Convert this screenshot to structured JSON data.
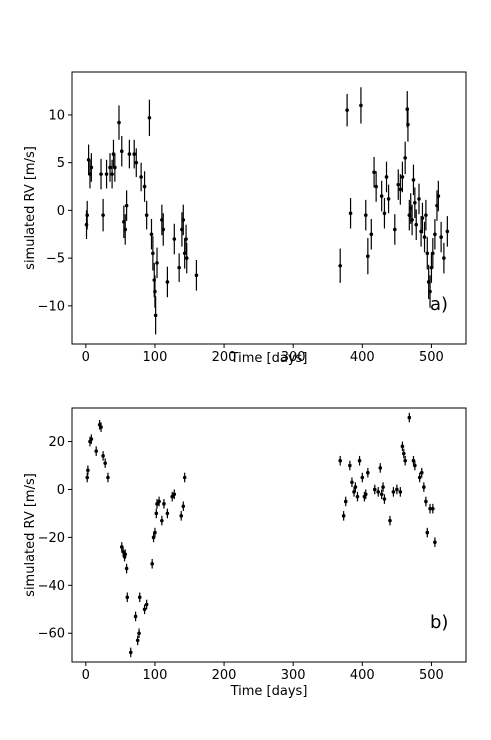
{
  "chart_data": [
    {
      "type": "scatter",
      "xlabel": "Time [days]",
      "ylabel": "simulated RV  [m/s]",
      "panel_label": "a)",
      "panel_label_color": "#0000cc",
      "marker_color": "#000000",
      "xlim": [
        -20,
        550
      ],
      "ylim": [
        -14,
        14.5
      ],
      "xticks": [
        0,
        100,
        200,
        300,
        400,
        500
      ],
      "yticks": [
        -10,
        -5,
        0,
        5,
        10
      ],
      "grid": false,
      "points": [
        {
          "x": 1,
          "y": -1.5,
          "err": 1.5
        },
        {
          "x": 2,
          "y": -0.5,
          "err": 1.5
        },
        {
          "x": 4,
          "y": 5.3,
          "err": 1.6
        },
        {
          "x": 6,
          "y": 3.8,
          "err": 1.5
        },
        {
          "x": 8,
          "y": 4.5,
          "err": 1.5
        },
        {
          "x": 22,
          "y": 3.8,
          "err": 1.6
        },
        {
          "x": 25,
          "y": -0.5,
          "err": 1.7
        },
        {
          "x": 30,
          "y": 3.8,
          "err": 1.5
        },
        {
          "x": 35,
          "y": 4.5,
          "err": 1.5
        },
        {
          "x": 38,
          "y": 3.8,
          "err": 1.5
        },
        {
          "x": 40,
          "y": 5.9,
          "err": 1.5
        },
        {
          "x": 42,
          "y": 4.5,
          "err": 1.5
        },
        {
          "x": 48,
          "y": 9.2,
          "err": 1.8
        },
        {
          "x": 52,
          "y": 6.2,
          "err": 1.6
        },
        {
          "x": 55,
          "y": -1.2,
          "err": 1.7
        },
        {
          "x": 57,
          "y": -2.0,
          "err": 1.6
        },
        {
          "x": 59,
          "y": 0.5,
          "err": 1.6
        },
        {
          "x": 63,
          "y": 5.9,
          "err": 1.5
        },
        {
          "x": 70,
          "y": 5.9,
          "err": 1.5
        },
        {
          "x": 73,
          "y": 5.0,
          "err": 1.5
        },
        {
          "x": 80,
          "y": 3.5,
          "err": 1.5
        },
        {
          "x": 85,
          "y": 2.5,
          "err": 1.6
        },
        {
          "x": 88,
          "y": -0.5,
          "err": 1.5
        },
        {
          "x": 92,
          "y": 9.7,
          "err": 1.9
        },
        {
          "x": 95,
          "y": -2.5,
          "err": 1.6
        },
        {
          "x": 97,
          "y": -4.5,
          "err": 1.8
        },
        {
          "x": 99,
          "y": -7.3,
          "err": 1.8
        },
        {
          "x": 100,
          "y": -8.5,
          "err": 1.7
        },
        {
          "x": 101,
          "y": -11.0,
          "err": 2.0
        },
        {
          "x": 103,
          "y": -5.5,
          "err": 1.6
        },
        {
          "x": 110,
          "y": -1.0,
          "err": 1.6
        },
        {
          "x": 112,
          "y": -2.0,
          "err": 1.7
        },
        {
          "x": 118,
          "y": -7.5,
          "err": 1.6
        },
        {
          "x": 128,
          "y": -3.0,
          "err": 1.6
        },
        {
          "x": 135,
          "y": -6.0,
          "err": 1.5
        },
        {
          "x": 139,
          "y": -2.0,
          "err": 1.8
        },
        {
          "x": 141,
          "y": -1.0,
          "err": 1.6
        },
        {
          "x": 143,
          "y": -4.5,
          "err": 1.6
        },
        {
          "x": 145,
          "y": -3.0,
          "err": 1.5
        },
        {
          "x": 146,
          "y": -5.0,
          "err": 1.6
        },
        {
          "x": 160,
          "y": -6.8,
          "err": 1.6
        },
        {
          "x": 368,
          "y": -5.8,
          "err": 1.8
        },
        {
          "x": 378,
          "y": 10.5,
          "err": 1.7
        },
        {
          "x": 383,
          "y": -0.3,
          "err": 1.6
        },
        {
          "x": 398,
          "y": 11.0,
          "err": 1.9
        },
        {
          "x": 405,
          "y": -0.5,
          "err": 1.6
        },
        {
          "x": 408,
          "y": -4.8,
          "err": 1.9
        },
        {
          "x": 413,
          "y": -2.5,
          "err": 1.6
        },
        {
          "x": 417,
          "y": 4.0,
          "err": 1.6
        },
        {
          "x": 420,
          "y": 2.5,
          "err": 1.6
        },
        {
          "x": 428,
          "y": 1.5,
          "err": 1.6
        },
        {
          "x": 432,
          "y": -0.3,
          "err": 1.6
        },
        {
          "x": 435,
          "y": 3.5,
          "err": 1.6
        },
        {
          "x": 438,
          "y": 1.2,
          "err": 1.5
        },
        {
          "x": 447,
          "y": -2.0,
          "err": 1.6
        },
        {
          "x": 452,
          "y": 2.7,
          "err": 1.6
        },
        {
          "x": 455,
          "y": 2.2,
          "err": 1.6
        },
        {
          "x": 458,
          "y": 3.5,
          "err": 1.6
        },
        {
          "x": 462,
          "y": 5.5,
          "err": 1.7
        },
        {
          "x": 465,
          "y": 10.6,
          "err": 1.9
        },
        {
          "x": 466,
          "y": 9.0,
          "err": 1.8
        },
        {
          "x": 468,
          "y": -0.5,
          "err": 1.6
        },
        {
          "x": 470,
          "y": 0.2,
          "err": 1.6
        },
        {
          "x": 472,
          "y": -1.0,
          "err": 1.6
        },
        {
          "x": 474,
          "y": 3.2,
          "err": 1.6
        },
        {
          "x": 476,
          "y": 0.8,
          "err": 1.6
        },
        {
          "x": 478,
          "y": -1.5,
          "err": 1.6
        },
        {
          "x": 482,
          "y": 1.2,
          "err": 1.6
        },
        {
          "x": 485,
          "y": -2.2,
          "err": 1.6
        },
        {
          "x": 487,
          "y": -0.8,
          "err": 1.6
        },
        {
          "x": 490,
          "y": -2.8,
          "err": 1.6
        },
        {
          "x": 492,
          "y": -0.5,
          "err": 1.6
        },
        {
          "x": 494,
          "y": -4.5,
          "err": 1.7
        },
        {
          "x": 496,
          "y": -7.5,
          "err": 1.8
        },
        {
          "x": 498,
          "y": -8.5,
          "err": 1.7
        },
        {
          "x": 500,
          "y": -6.0,
          "err": 1.6
        },
        {
          "x": 502,
          "y": -4.5,
          "err": 1.6
        },
        {
          "x": 505,
          "y": -2.5,
          "err": 1.6
        },
        {
          "x": 508,
          "y": 0.5,
          "err": 1.6
        },
        {
          "x": 510,
          "y": 1.5,
          "err": 1.6
        },
        {
          "x": 514,
          "y": -2.8,
          "err": 1.6
        },
        {
          "x": 518,
          "y": -5.0,
          "err": 1.6
        },
        {
          "x": 523,
          "y": -2.2,
          "err": 1.6
        }
      ]
    },
    {
      "type": "scatter",
      "xlabel": "Time [days]",
      "ylabel": "simulated RV  [m/s]",
      "panel_label": "b)",
      "panel_label_color": "#0000cc",
      "marker_color": "#000000",
      "xlim": [
        -20,
        550
      ],
      "ylim": [
        -72,
        34
      ],
      "xticks": [
        0,
        100,
        200,
        300,
        400,
        500
      ],
      "yticks": [
        -60,
        -40,
        -20,
        0,
        20
      ],
      "grid": false,
      "points": [
        {
          "x": 2,
          "y": 5,
          "err": 2
        },
        {
          "x": 3,
          "y": 8,
          "err": 2
        },
        {
          "x": 6,
          "y": 20,
          "err": 2
        },
        {
          "x": 8,
          "y": 21,
          "err": 2
        },
        {
          "x": 15,
          "y": 16,
          "err": 2
        },
        {
          "x": 20,
          "y": 27,
          "err": 2
        },
        {
          "x": 22,
          "y": 26,
          "err": 2
        },
        {
          "x": 25,
          "y": 14,
          "err": 2
        },
        {
          "x": 28,
          "y": 11,
          "err": 2
        },
        {
          "x": 32,
          "y": 5,
          "err": 2
        },
        {
          "x": 52,
          "y": -24,
          "err": 2
        },
        {
          "x": 54,
          "y": -26,
          "err": 2
        },
        {
          "x": 56,
          "y": -28,
          "err": 2
        },
        {
          "x": 57,
          "y": -27,
          "err": 2
        },
        {
          "x": 59,
          "y": -33,
          "err": 2
        },
        {
          "x": 60,
          "y": -45,
          "err": 2
        },
        {
          "x": 65,
          "y": -68,
          "err": 2
        },
        {
          "x": 72,
          "y": -53,
          "err": 2
        },
        {
          "x": 75,
          "y": -63,
          "err": 2
        },
        {
          "x": 77,
          "y": -60,
          "err": 2
        },
        {
          "x": 78,
          "y": -45,
          "err": 2
        },
        {
          "x": 85,
          "y": -50,
          "err": 2
        },
        {
          "x": 88,
          "y": -48,
          "err": 2
        },
        {
          "x": 96,
          "y": -31,
          "err": 2
        },
        {
          "x": 98,
          "y": -20,
          "err": 2
        },
        {
          "x": 100,
          "y": -18,
          "err": 2
        },
        {
          "x": 102,
          "y": -10,
          "err": 2
        },
        {
          "x": 103,
          "y": -6,
          "err": 2
        },
        {
          "x": 106,
          "y": -5,
          "err": 2
        },
        {
          "x": 110,
          "y": -13,
          "err": 2
        },
        {
          "x": 113,
          "y": -6,
          "err": 2
        },
        {
          "x": 118,
          "y": -10,
          "err": 2
        },
        {
          "x": 125,
          "y": -3,
          "err": 2
        },
        {
          "x": 128,
          "y": -2,
          "err": 2
        },
        {
          "x": 138,
          "y": -11,
          "err": 2
        },
        {
          "x": 141,
          "y": -7,
          "err": 2
        },
        {
          "x": 143,
          "y": 5,
          "err": 2
        },
        {
          "x": 368,
          "y": 12,
          "err": 2
        },
        {
          "x": 373,
          "y": -11,
          "err": 2
        },
        {
          "x": 376,
          "y": -5,
          "err": 2
        },
        {
          "x": 382,
          "y": 10,
          "err": 2
        },
        {
          "x": 385,
          "y": 3,
          "err": 2
        },
        {
          "x": 388,
          "y": -1,
          "err": 2
        },
        {
          "x": 390,
          "y": 1,
          "err": 2
        },
        {
          "x": 393,
          "y": -3,
          "err": 2
        },
        {
          "x": 396,
          "y": 12,
          "err": 2
        },
        {
          "x": 400,
          "y": 5,
          "err": 2
        },
        {
          "x": 403,
          "y": -3,
          "err": 2
        },
        {
          "x": 405,
          "y": -2,
          "err": 2
        },
        {
          "x": 408,
          "y": 7,
          "err": 2
        },
        {
          "x": 418,
          "y": 0,
          "err": 2
        },
        {
          "x": 423,
          "y": -1,
          "err": 2
        },
        {
          "x": 426,
          "y": 9,
          "err": 2
        },
        {
          "x": 428,
          "y": -2,
          "err": 2
        },
        {
          "x": 430,
          "y": 1,
          "err": 2
        },
        {
          "x": 432,
          "y": -4,
          "err": 2
        },
        {
          "x": 440,
          "y": -13,
          "err": 2
        },
        {
          "x": 445,
          "y": -1,
          "err": 2
        },
        {
          "x": 450,
          "y": 0,
          "err": 2
        },
        {
          "x": 455,
          "y": -1,
          "err": 2
        },
        {
          "x": 458,
          "y": 18,
          "err": 2
        },
        {
          "x": 460,
          "y": 15,
          "err": 2
        },
        {
          "x": 462,
          "y": 12,
          "err": 2
        },
        {
          "x": 468,
          "y": 30,
          "err": 2
        },
        {
          "x": 474,
          "y": 12,
          "err": 2
        },
        {
          "x": 476,
          "y": 10,
          "err": 2
        },
        {
          "x": 483,
          "y": 5,
          "err": 2
        },
        {
          "x": 486,
          "y": 7,
          "err": 2
        },
        {
          "x": 489,
          "y": 1,
          "err": 2
        },
        {
          "x": 492,
          "y": -5,
          "err": 2
        },
        {
          "x": 494,
          "y": -18,
          "err": 2
        },
        {
          "x": 498,
          "y": -8,
          "err": 2
        },
        {
          "x": 502,
          "y": -8,
          "err": 2
        },
        {
          "x": 505,
          "y": -22,
          "err": 2
        }
      ]
    }
  ]
}
